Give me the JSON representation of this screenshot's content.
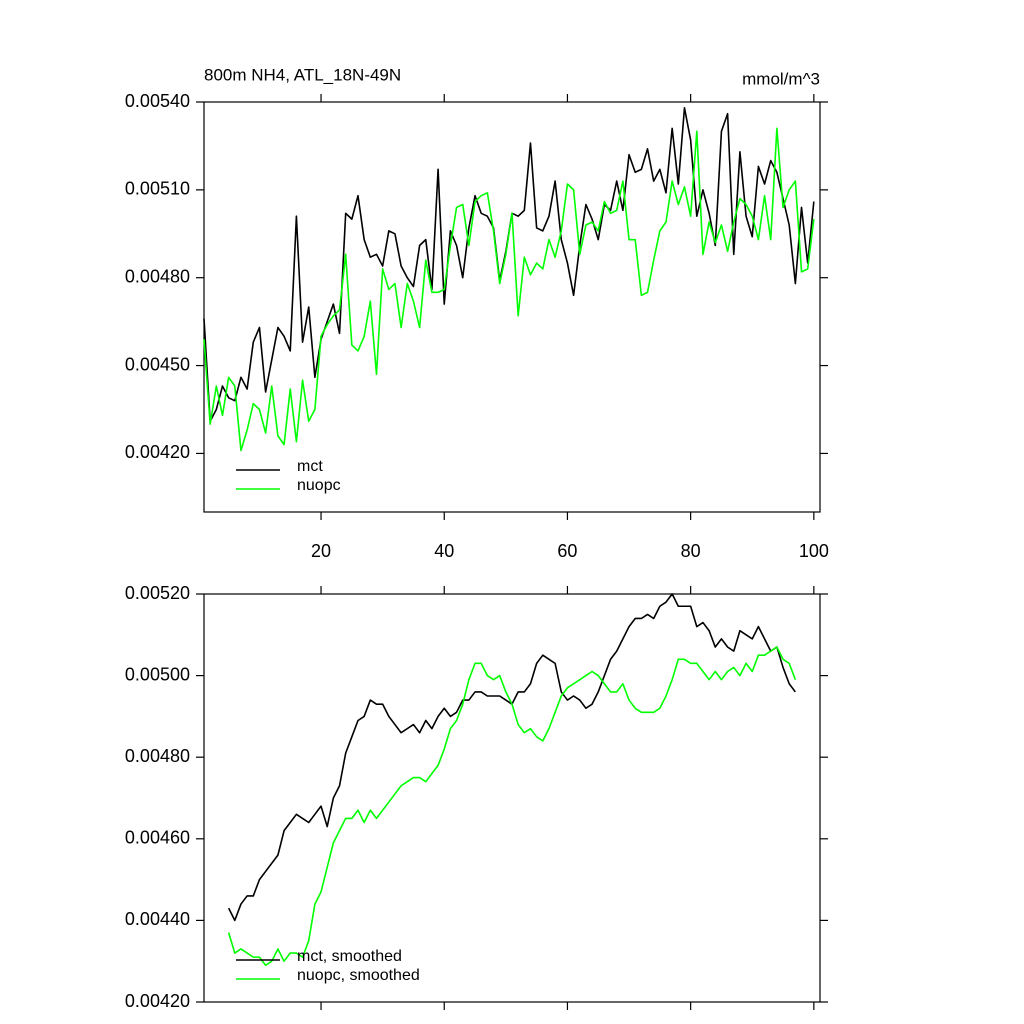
{
  "chart_data": [
    {
      "type": "line",
      "title": "800m NH4, ATL_18N-49N",
      "units": "mmol/m^3",
      "x": [
        1,
        2,
        3,
        4,
        5,
        6,
        7,
        8,
        9,
        10,
        11,
        12,
        13,
        14,
        15,
        16,
        17,
        18,
        19,
        20,
        21,
        22,
        23,
        24,
        25,
        26,
        27,
        28,
        29,
        30,
        31,
        32,
        33,
        34,
        35,
        36,
        37,
        38,
        39,
        40,
        41,
        42,
        43,
        44,
        45,
        46,
        47,
        48,
        49,
        50,
        51,
        52,
        53,
        54,
        55,
        56,
        57,
        58,
        59,
        60,
        61,
        62,
        63,
        64,
        65,
        66,
        67,
        68,
        69,
        70,
        71,
        72,
        73,
        74,
        75,
        76,
        77,
        78,
        79,
        80,
        81,
        82,
        83,
        84,
        85,
        86,
        87,
        88,
        89,
        90,
        91,
        92,
        93,
        94,
        95,
        96,
        97,
        98,
        99,
        100
      ],
      "series": [
        {
          "name": "mct",
          "color": "#000000",
          "values": [
            0.00466,
            0.00431,
            0.00435,
            0.00443,
            0.00439,
            0.00438,
            0.00446,
            0.00442,
            0.00458,
            0.00463,
            0.00441,
            0.00452,
            0.00463,
            0.0046,
            0.00455,
            0.00501,
            0.00458,
            0.0047,
            0.00446,
            0.00459,
            0.00465,
            0.00471,
            0.00461,
            0.00502,
            0.005,
            0.00508,
            0.00493,
            0.00487,
            0.00488,
            0.00484,
            0.00496,
            0.00495,
            0.00484,
            0.0048,
            0.00477,
            0.00491,
            0.00493,
            0.00476,
            0.00517,
            0.00471,
            0.00496,
            0.00491,
            0.0048,
            0.00497,
            0.00508,
            0.00502,
            0.00501,
            0.00497,
            0.00479,
            0.00489,
            0.00502,
            0.00501,
            0.00503,
            0.00526,
            0.00497,
            0.00496,
            0.00501,
            0.00513,
            0.00493,
            0.00485,
            0.00474,
            0.00491,
            0.00505,
            0.005,
            0.00493,
            0.00505,
            0.00503,
            0.00513,
            0.00503,
            0.00522,
            0.00516,
            0.00517,
            0.00524,
            0.00513,
            0.00517,
            0.00509,
            0.00531,
            0.00512,
            0.00538,
            0.00527,
            0.00501,
            0.0051,
            0.00502,
            0.00491,
            0.0053,
            0.00536,
            0.00488,
            0.00523,
            0.00501,
            0.00494,
            0.00518,
            0.00512,
            0.0052,
            0.00516,
            0.00507,
            0.00498,
            0.00478,
            0.00504,
            0.00485,
            0.00506
          ]
        },
        {
          "name": "nuopc",
          "color": "#00ff00",
          "values": [
            0.00459,
            0.0043,
            0.00443,
            0.00433,
            0.00446,
            0.00443,
            0.00421,
            0.00428,
            0.00437,
            0.00435,
            0.00427,
            0.00443,
            0.00426,
            0.00423,
            0.00442,
            0.00424,
            0.00445,
            0.00431,
            0.00435,
            0.0046,
            0.00464,
            0.00467,
            0.00469,
            0.00488,
            0.00457,
            0.00455,
            0.0046,
            0.00472,
            0.00447,
            0.00483,
            0.00476,
            0.00478,
            0.00463,
            0.00478,
            0.00472,
            0.00463,
            0.00486,
            0.00475,
            0.00475,
            0.00476,
            0.00491,
            0.00504,
            0.00505,
            0.00491,
            0.00506,
            0.00508,
            0.00509,
            0.00496,
            0.00478,
            0.00488,
            0.00502,
            0.00467,
            0.00487,
            0.00481,
            0.00485,
            0.00483,
            0.00493,
            0.00487,
            0.00496,
            0.00512,
            0.0051,
            0.00488,
            0.00498,
            0.00499,
            0.00496,
            0.00506,
            0.00502,
            0.00503,
            0.00513,
            0.00493,
            0.00493,
            0.00474,
            0.00475,
            0.00486,
            0.00496,
            0.00499,
            0.00513,
            0.00505,
            0.00511,
            0.00501,
            0.0053,
            0.00488,
            0.00499,
            0.00492,
            0.00498,
            0.00489,
            0.00499,
            0.00507,
            0.00505,
            0.00501,
            0.00493,
            0.00508,
            0.00493,
            0.00531,
            0.00504,
            0.0051,
            0.00513,
            0.00482,
            0.00483,
            0.005
          ]
        }
      ],
      "xlim": [
        1,
        101
      ],
      "xticks": [
        20,
        40,
        60,
        80,
        100
      ],
      "ylim": [
        0.004,
        0.0054
      ],
      "yticks": [
        {
          "value": 0.0042,
          "label": "0.00420"
        },
        {
          "value": 0.0045,
          "label": "0.00450"
        },
        {
          "value": 0.0048,
          "label": "0.00480"
        },
        {
          "value": 0.0051,
          "label": "0.00510"
        },
        {
          "value": 0.0054,
          "label": "0.00540"
        }
      ],
      "legend": "lower left"
    },
    {
      "type": "line",
      "x": [
        5,
        6,
        7,
        8,
        9,
        10,
        11,
        12,
        13,
        14,
        15,
        16,
        17,
        18,
        19,
        20,
        21,
        22,
        23,
        24,
        25,
        26,
        27,
        28,
        29,
        30,
        31,
        32,
        33,
        34,
        35,
        36,
        37,
        38,
        39,
        40,
        41,
        42,
        43,
        44,
        45,
        46,
        47,
        48,
        49,
        50,
        51,
        52,
        53,
        54,
        55,
        56,
        57,
        58,
        59,
        60,
        61,
        62,
        63,
        64,
        65,
        66,
        67,
        68,
        69,
        70,
        71,
        72,
        73,
        74,
        75,
        76,
        77,
        78,
        79,
        80,
        81,
        82,
        83,
        84,
        85,
        86,
        87,
        88,
        89,
        90,
        91,
        92,
        93,
        94,
        95,
        96,
        97
      ],
      "series": [
        {
          "name": "mct, smoothed",
          "color": "#000000",
          "values": [
            0.00443,
            0.0044,
            0.00444,
            0.00446,
            0.00446,
            0.0045,
            0.00452,
            0.00454,
            0.00456,
            0.00462,
            0.00464,
            0.00466,
            0.00465,
            0.00464,
            0.00466,
            0.00468,
            0.00463,
            0.0047,
            0.00473,
            0.00481,
            0.00485,
            0.00489,
            0.0049,
            0.00494,
            0.00493,
            0.00493,
            0.0049,
            0.00488,
            0.00486,
            0.00487,
            0.00488,
            0.00486,
            0.00489,
            0.00487,
            0.0049,
            0.00492,
            0.0049,
            0.00491,
            0.00494,
            0.00494,
            0.00496,
            0.00496,
            0.00495,
            0.00495,
            0.00495,
            0.00494,
            0.00493,
            0.00496,
            0.00496,
            0.00498,
            0.00503,
            0.00505,
            0.00504,
            0.00503,
            0.00496,
            0.00494,
            0.00495,
            0.00494,
            0.00492,
            0.00493,
            0.00496,
            0.005,
            0.00504,
            0.00506,
            0.00509,
            0.00512,
            0.00514,
            0.00514,
            0.00515,
            0.00514,
            0.00517,
            0.00518,
            0.0052,
            0.00517,
            0.00517,
            0.00517,
            0.00512,
            0.00513,
            0.00511,
            0.00507,
            0.00509,
            0.00507,
            0.00506,
            0.00511,
            0.0051,
            0.00509,
            0.00512,
            0.00509,
            0.00506,
            0.00507,
            0.00502,
            0.00498,
            0.00496
          ]
        },
        {
          "name": "nuopc, smoothed",
          "color": "#00ff00",
          "values": [
            0.00437,
            0.00432,
            0.00433,
            0.00432,
            0.00431,
            0.00431,
            0.00429,
            0.0043,
            0.00433,
            0.0043,
            0.00432,
            0.00432,
            0.00431,
            0.00435,
            0.00444,
            0.00447,
            0.00453,
            0.00459,
            0.00462,
            0.00465,
            0.00465,
            0.00467,
            0.00464,
            0.00467,
            0.00465,
            0.00467,
            0.00469,
            0.00471,
            0.00473,
            0.00474,
            0.00475,
            0.00475,
            0.00474,
            0.00476,
            0.00478,
            0.00482,
            0.00487,
            0.00489,
            0.00493,
            0.00499,
            0.00503,
            0.00503,
            0.005,
            0.00499,
            0.005,
            0.00496,
            0.00493,
            0.00488,
            0.00486,
            0.00487,
            0.00485,
            0.00484,
            0.00487,
            0.00491,
            0.00495,
            0.00497,
            0.00498,
            0.00499,
            0.005,
            0.00501,
            0.005,
            0.00498,
            0.00496,
            0.00496,
            0.00498,
            0.00494,
            0.00492,
            0.00491,
            0.00491,
            0.00491,
            0.00492,
            0.00495,
            0.00499,
            0.00504,
            0.00504,
            0.00503,
            0.00503,
            0.00501,
            0.00499,
            0.00501,
            0.00499,
            0.00501,
            0.00502,
            0.005,
            0.00503,
            0.00501,
            0.00505,
            0.00505,
            0.00506,
            0.00507,
            0.00504,
            0.00503,
            0.00499
          ]
        }
      ],
      "xlim": [
        1,
        101
      ],
      "xticks": [
        20,
        40,
        60,
        80,
        100
      ],
      "xtick_labels": false,
      "ylim": [
        0.0042,
        0.0052
      ],
      "yticks": [
        {
          "value": 0.0042,
          "label": "0.00420"
        },
        {
          "value": 0.0044,
          "label": "0.00440"
        },
        {
          "value": 0.0046,
          "label": "0.00460"
        },
        {
          "value": 0.0048,
          "label": "0.00480"
        },
        {
          "value": 0.005,
          "label": "0.00500"
        },
        {
          "value": 0.0052,
          "label": "0.00520"
        }
      ],
      "legend": "lower left"
    }
  ]
}
